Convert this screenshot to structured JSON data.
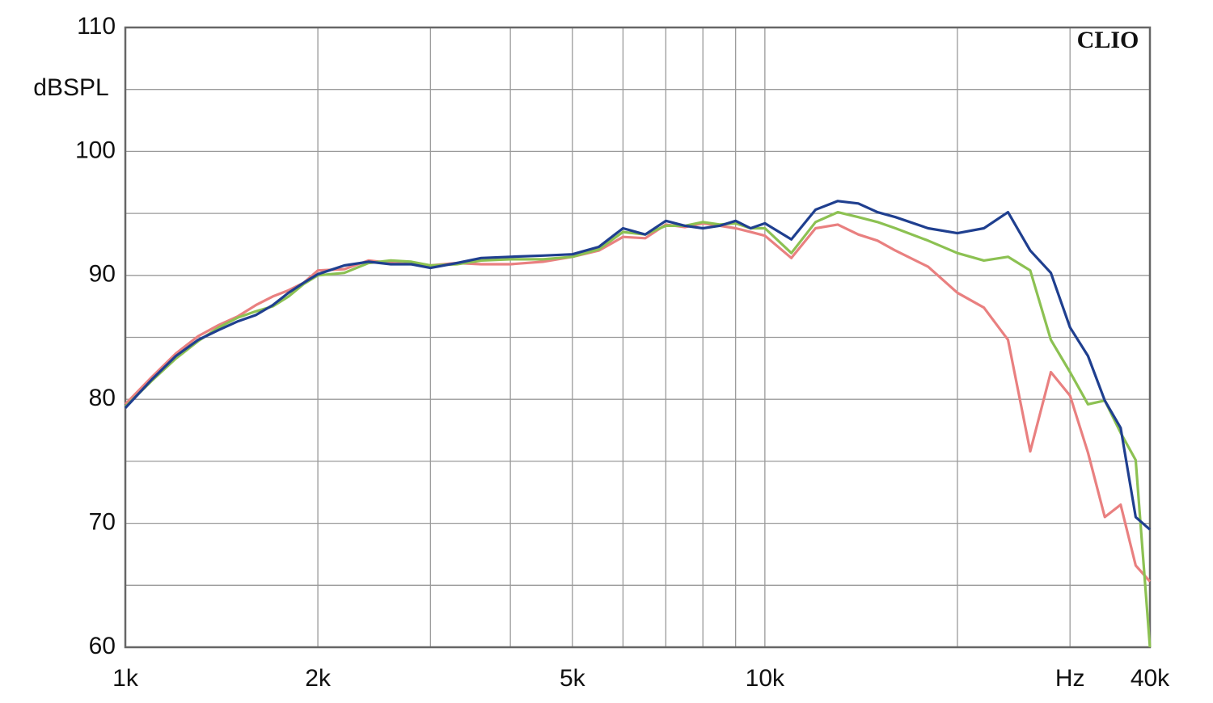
{
  "chart_data": {
    "type": "line",
    "watermark": "CLIO",
    "y_label": "dBSPL",
    "x_log": true,
    "grid": true,
    "xlim": [
      1000,
      40000
    ],
    "ylim": [
      60,
      110
    ],
    "xticks": [
      {
        "value": 1000,
        "label": "1k"
      },
      {
        "value": 2000,
        "label": "2k"
      },
      {
        "value": 5000,
        "label": "5k"
      },
      {
        "value": 10000,
        "label": "10k"
      },
      {
        "value": 30000,
        "label": "Hz"
      },
      {
        "value": 40000,
        "label": "40k"
      }
    ],
    "x_minor_grid": [
      3000,
      4000,
      6000,
      7000,
      8000,
      9000,
      20000
    ],
    "yticks": [
      60,
      70,
      80,
      90,
      100,
      110
    ],
    "y_minor_grid": [
      65,
      75,
      85,
      95,
      105
    ],
    "x": [
      1000,
      1100,
      1200,
      1300,
      1400,
      1500,
      1600,
      1700,
      1800,
      1900,
      2000,
      2200,
      2400,
      2600,
      2800,
      3000,
      3300,
      3600,
      4000,
      4500,
      5000,
      5500,
      6000,
      6500,
      7000,
      7500,
      8000,
      8500,
      9000,
      9500,
      10000,
      11000,
      12000,
      13000,
      14000,
      15000,
      16000,
      18000,
      20000,
      22000,
      24000,
      26000,
      28000,
      30000,
      32000,
      34000,
      36000,
      38000,
      40000
    ],
    "series": [
      {
        "color": "#e98080",
        "values": [
          79.6,
          81.8,
          83.7,
          85.1,
          86.0,
          86.7,
          87.6,
          88.3,
          88.8,
          89.4,
          90.4,
          90.5,
          91.2,
          91.0,
          90.9,
          90.8,
          91.0,
          90.9,
          90.9,
          91.1,
          91.5,
          92.0,
          93.1,
          93.0,
          94.1,
          93.9,
          94.2,
          94.0,
          93.8,
          93.5,
          93.2,
          91.4,
          93.8,
          94.1,
          93.3,
          92.8,
          92.0,
          90.7,
          88.6,
          87.4,
          84.8,
          75.8,
          82.2,
          80.3,
          75.7,
          70.5,
          71.5,
          66.6,
          65.3
        ]
      },
      {
        "color": "#8cc152",
        "values": [
          79.4,
          81.5,
          83.3,
          84.7,
          85.8,
          86.6,
          87.1,
          87.5,
          88.3,
          89.3,
          90.0,
          90.2,
          91.0,
          91.2,
          91.1,
          90.8,
          90.9,
          91.2,
          91.3,
          91.3,
          91.5,
          92.1,
          93.5,
          93.3,
          94.0,
          94.0,
          94.3,
          94.1,
          94.2,
          93.8,
          93.8,
          91.8,
          94.3,
          95.1,
          94.7,
          94.3,
          93.8,
          92.8,
          91.8,
          91.2,
          91.5,
          90.4,
          84.8,
          82.2,
          79.6,
          79.9,
          77.3,
          75.1,
          60.0
        ]
      },
      {
        "color": "#1f3f8f",
        "values": [
          79.3,
          81.6,
          83.5,
          84.8,
          85.6,
          86.3,
          86.8,
          87.6,
          88.6,
          89.4,
          90.1,
          90.8,
          91.1,
          90.9,
          90.9,
          90.6,
          91.0,
          91.4,
          91.5,
          91.6,
          91.7,
          92.3,
          93.8,
          93.3,
          94.4,
          94.0,
          93.8,
          94.0,
          94.4,
          93.8,
          94.2,
          92.9,
          95.3,
          96.0,
          95.8,
          95.1,
          94.7,
          93.8,
          93.4,
          93.8,
          95.1,
          92.0,
          90.2,
          85.8,
          83.5,
          79.9,
          77.7,
          70.5,
          69.5
        ]
      }
    ]
  }
}
